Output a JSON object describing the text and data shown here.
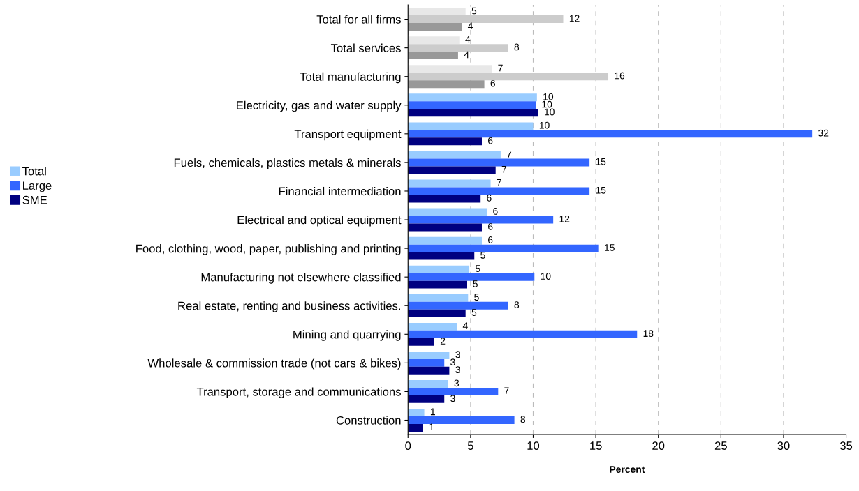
{
  "chart_data": {
    "type": "bar",
    "orientation": "horizontal",
    "xlabel": "Percent",
    "categories": [
      "Total for all firms",
      "Total services",
      "Total manufacturing",
      "Electricity, gas and water supply",
      "Transport equipment",
      "Fuels, chemicals, plastics metals & minerals",
      "Financial intermediation",
      "Electrical and optical equipment",
      "Food, clothing, wood, paper, publishing and printing",
      "Manufacturing not elsewhere classified",
      "Real estate, renting and business activities.",
      "Mining and quarrying",
      "Wholesale & commission trade (not cars & bikes)",
      "Transport, storage and communications",
      "Construction"
    ],
    "series": [
      {
        "name": "Total",
        "color": "#99ccff",
        "colors": [
          "#e8e8e8",
          "#e8e8e8",
          "#e8e8e8",
          "#99ccff",
          "#99ccff",
          "#99ccff",
          "#99ccff",
          "#99ccff",
          "#99ccff",
          "#99ccff",
          "#99ccff",
          "#99ccff",
          "#99ccff",
          "#99ccff",
          "#99ccff"
        ],
        "values": [
          4.6,
          4.1,
          6.7,
          10.3,
          10.0,
          7.4,
          6.6,
          6.3,
          5.9,
          4.9,
          4.8,
          3.9,
          3.3,
          3.2,
          1.3
        ],
        "value_labels": [
          "5",
          "4",
          "7",
          "10",
          "10",
          "7",
          "7",
          "6",
          "6",
          "5",
          "5",
          "4",
          "3",
          "3",
          "1"
        ]
      },
      {
        "name": "Large",
        "color": "#3366ff",
        "colors": [
          "#cccccc",
          "#cccccc",
          "#cccccc",
          "#3366ff",
          "#3366ff",
          "#3366ff",
          "#3366ff",
          "#3366ff",
          "#3366ff",
          "#3366ff",
          "#3366ff",
          "#3366ff",
          "#3366ff",
          "#3366ff",
          "#3366ff"
        ],
        "values": [
          12.4,
          8.0,
          16.0,
          10.2,
          32.3,
          14.5,
          14.5,
          11.6,
          15.2,
          10.1,
          8.0,
          18.3,
          2.9,
          7.2,
          8.5
        ],
        "value_labels": [
          "12",
          "8",
          "16",
          "10",
          "32",
          "15",
          "15",
          "12",
          "15",
          "10",
          "8",
          "18",
          "3",
          "7",
          "8"
        ]
      },
      {
        "name": "SME",
        "color": "#000080",
        "colors": [
          "#999999",
          "#999999",
          "#999999",
          "#000080",
          "#000080",
          "#000080",
          "#000080",
          "#000080",
          "#000080",
          "#000080",
          "#000080",
          "#000080",
          "#000080",
          "#000080",
          "#000080"
        ],
        "values": [
          4.3,
          4.0,
          6.1,
          10.4,
          5.9,
          7.0,
          5.8,
          5.9,
          5.3,
          4.7,
          4.6,
          2.1,
          3.3,
          2.9,
          1.2
        ],
        "value_labels": [
          "4",
          "4",
          "6",
          "10",
          "6",
          "7",
          "6",
          "6",
          "5",
          "5",
          "5",
          "2",
          "3",
          "3",
          "1"
        ]
      }
    ],
    "xlim": [
      0,
      35
    ],
    "xticks": [
      0,
      5,
      10,
      15,
      20,
      25,
      30,
      35
    ],
    "grid": "x",
    "legend": "left"
  }
}
